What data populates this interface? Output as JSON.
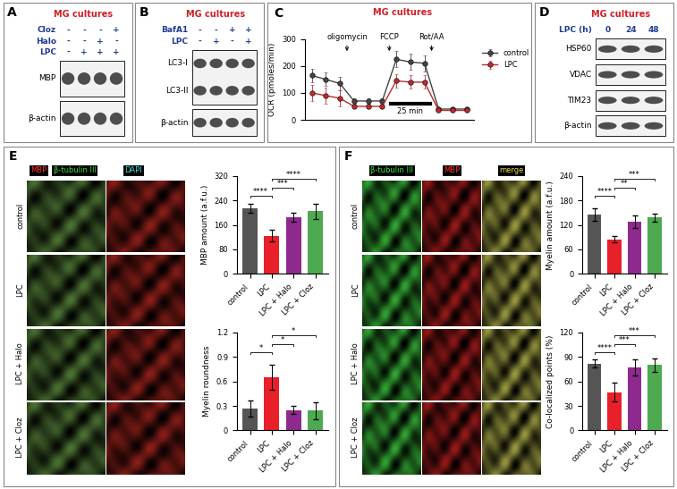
{
  "chart_data": [
    {
      "panel": "C",
      "type": "line",
      "title": "MG cultures",
      "ylabel": "OCR (pmoles/min)",
      "x": [
        1,
        2,
        3,
        4,
        5,
        6,
        7,
        8,
        9,
        10,
        11,
        12
      ],
      "xlim": [
        0.5,
        12.5
      ],
      "tick_labels": "y",
      "ylim": [
        0,
        300
      ],
      "yticks": [
        0,
        100,
        200,
        300
      ],
      "legend": "right",
      "series": [
        {
          "name": "control",
          "color": "#444444",
          "marker": "o",
          "values": [
            165,
            150,
            135,
            70,
            70,
            70,
            225,
            215,
            210,
            40,
            40,
            40
          ],
          "errors": [
            25,
            25,
            25,
            10,
            10,
            10,
            30,
            30,
            30,
            8,
            8,
            8
          ]
        },
        {
          "name": "LPC",
          "color": "#c0282d",
          "marker": "o",
          "values": [
            100,
            90,
            80,
            50,
            50,
            50,
            145,
            140,
            140,
            35,
            35,
            35
          ],
          "errors": [
            30,
            30,
            30,
            8,
            8,
            8,
            25,
            25,
            25,
            6,
            6,
            6
          ]
        }
      ],
      "annotations": [
        {
          "text": "oligomycin",
          "x": 3.5
        },
        {
          "text": "FCCP",
          "x": 6.5
        },
        {
          "text": "Rot/AA",
          "x": 9.5
        },
        {
          "text": "25 min",
          "x": [
            6.6,
            9.4
          ]
        }
      ]
    },
    {
      "panel": "E",
      "type": "bar",
      "ylabel": "MBP amount (a.f.u.)",
      "categories": [
        "control",
        "LPC",
        "LPC + Halo",
        "LPC + Cloz"
      ],
      "values": [
        215,
        125,
        185,
        205
      ],
      "errors": [
        15,
        20,
        15,
        25
      ],
      "colors": [
        "#555555",
        "#e8202a",
        "#8e2a8e",
        "#4daa50"
      ],
      "ylim": [
        0,
        320
      ],
      "yticks": [
        0,
        80,
        160,
        240,
        320
      ],
      "significance": [
        {
          "pair": [
            0,
            1
          ],
          "label": "****"
        },
        {
          "pair": [
            1,
            2
          ],
          "label": "***"
        },
        {
          "pair": [
            1,
            3
          ],
          "label": "****"
        }
      ]
    },
    {
      "panel": "E",
      "type": "bar",
      "ylabel": "Myelin roundness",
      "categories": [
        "control",
        "LPC",
        "LPC + Halo",
        "LPC + Cloz"
      ],
      "values": [
        0.27,
        0.65,
        0.25,
        0.24
      ],
      "errors": [
        0.1,
        0.15,
        0.05,
        0.1
      ],
      "colors": [
        "#555555",
        "#e8202a",
        "#8e2a8e",
        "#4daa50"
      ],
      "ylim": [
        0,
        1.2
      ],
      "yticks": [
        0,
        0.3,
        0.6,
        0.9,
        1.2
      ],
      "significance": [
        {
          "pair": [
            0,
            1
          ],
          "label": "*"
        },
        {
          "pair": [
            1,
            2
          ],
          "label": "*"
        },
        {
          "pair": [
            1,
            3
          ],
          "label": "*"
        }
      ]
    },
    {
      "panel": "F",
      "type": "bar",
      "ylabel": "Myelin amount (a.f.u.)",
      "categories": [
        "control",
        "LPC",
        "LPC + Halo",
        "LPC + Cloz"
      ],
      "values": [
        145,
        85,
        128,
        138
      ],
      "errors": [
        15,
        8,
        15,
        10
      ],
      "colors": [
        "#555555",
        "#e8202a",
        "#8e2a8e",
        "#4daa50"
      ],
      "ylim": [
        0,
        240
      ],
      "yticks": [
        0,
        60,
        120,
        180,
        240
      ],
      "significance": [
        {
          "pair": [
            0,
            1
          ],
          "label": "****"
        },
        {
          "pair": [
            1,
            2
          ],
          "label": "**"
        },
        {
          "pair": [
            1,
            3
          ],
          "label": "***"
        }
      ]
    },
    {
      "panel": "F",
      "type": "bar",
      "ylabel": "Co-localized points (%)",
      "categories": [
        "control",
        "LPC",
        "LPC + Halo",
        "LPC + Cloz"
      ],
      "values": [
        82,
        47,
        77,
        80
      ],
      "errors": [
        5,
        12,
        10,
        8
      ],
      "colors": [
        "#555555",
        "#e8202a",
        "#8e2a8e",
        "#4daa50"
      ],
      "ylim": [
        0,
        120
      ],
      "yticks": [
        0,
        30,
        60,
        90,
        120
      ],
      "significance": [
        {
          "pair": [
            0,
            1
          ],
          "label": "****"
        },
        {
          "pair": [
            1,
            2
          ],
          "label": "***"
        },
        {
          "pair": [
            1,
            3
          ],
          "label": "***"
        }
      ]
    }
  ],
  "blots": [
    {
      "panel": "A",
      "title": "MG cultures",
      "conditions": [
        {
          "name": "Cloz",
          "signs": [
            "-",
            "-",
            "-",
            "+"
          ]
        },
        {
          "name": "Halo",
          "signs": [
            "-",
            "-",
            "+",
            "-"
          ]
        },
        {
          "name": "LPC",
          "signs": [
            "-",
            "+",
            "+",
            "+"
          ]
        }
      ],
      "bands": [
        [
          "MBP"
        ],
        [
          "β-actin"
        ]
      ]
    },
    {
      "panel": "B",
      "title": "MG cultures",
      "conditions": [
        {
          "name": "BafA1",
          "signs": [
            "-",
            "-",
            "+",
            "+"
          ]
        },
        {
          "name": "LPC",
          "signs": [
            "-",
            "+",
            "-",
            "+"
          ]
        }
      ],
      "bands": [
        [
          "LC3-I",
          "LC3-II"
        ],
        [
          "β-actin"
        ]
      ]
    },
    {
      "panel": "D",
      "title": "MG cultures",
      "conditions": [
        {
          "name": "LPC (h)",
          "signs": [
            "0",
            "24",
            "48"
          ]
        }
      ],
      "bands": [
        [
          "HSP60"
        ],
        [
          "VDAC"
        ],
        [
          "TIM23"
        ],
        [
          "β-actin"
        ]
      ]
    }
  ],
  "images": [
    {
      "panel": "E",
      "channels": [
        {
          "text": "MBP",
          "color": "#ff3030"
        },
        {
          "text": "β-tubulin III",
          "color": "#40e040"
        },
        {
          "text": "DAPI",
          "color": "#40e0e0"
        }
      ],
      "columns": 2,
      "rows": [
        "control",
        "LPC",
        "LPC + Halo",
        "LPC + Cloz"
      ]
    },
    {
      "panel": "F",
      "channels": [
        {
          "text": "β-tubulin III",
          "color": "#40e040"
        },
        {
          "text": "MBP",
          "color": "#ff3030"
        },
        {
          "text": "merge",
          "color": "#f0e040"
        }
      ],
      "columns": 3,
      "rows": [
        "control",
        "LPC",
        "LPC + Halo",
        "LPC + Cloz"
      ]
    }
  ]
}
